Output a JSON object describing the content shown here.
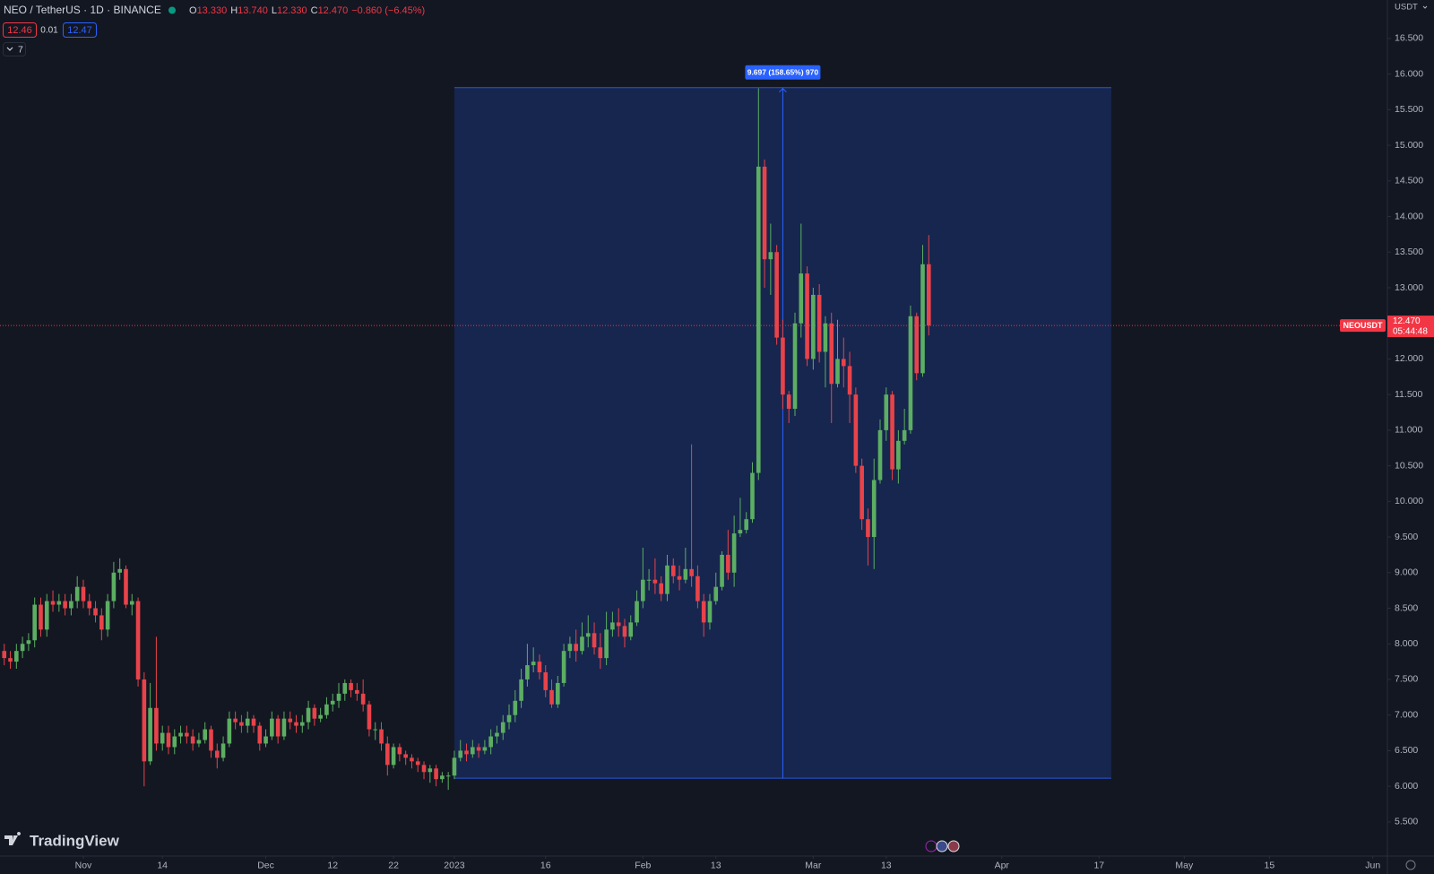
{
  "chart_data": {
    "type": "candlestick",
    "symbol": "NEO / TetherUS · 1D · BINANCE",
    "ohlc_labels": [
      "O",
      "H",
      "L",
      "C"
    ],
    "ohlc_values": [
      "13.330",
      "13.740",
      "12.330",
      "12.470"
    ],
    "change": "−0.860 (−6.45%)",
    "bid": "12.46",
    "spread": "0.01",
    "ask": "12.47",
    "indicators_count": "7",
    "currency": "USDT",
    "brand": "TradingView",
    "up_color": "#5cae62",
    "down_color": "#e8434a",
    "grid": false,
    "xlim": [
      -74.7,
      153.4
    ],
    "ylim": [
      5.02,
      17.04
    ],
    "yticks": [
      {
        "value": 5.5,
        "label": "5.500"
      },
      {
        "value": 6,
        "label": "6.000"
      },
      {
        "value": 6.5,
        "label": "6.500"
      },
      {
        "value": 7,
        "label": "7.000"
      },
      {
        "value": 7.5,
        "label": "7.500"
      },
      {
        "value": 8,
        "label": "8.000"
      },
      {
        "value": 8.5,
        "label": "8.500"
      },
      {
        "value": 9,
        "label": "9.000"
      },
      {
        "value": 9.5,
        "label": "9.500"
      },
      {
        "value": 10,
        "label": "10.000"
      },
      {
        "value": 10.5,
        "label": "10.500"
      },
      {
        "value": 11,
        "label": "11.000"
      },
      {
        "value": 11.5,
        "label": "11.500"
      },
      {
        "value": 12,
        "label": "12.000"
      },
      {
        "value": 12.5,
        "label": "12.500"
      },
      {
        "value": 13,
        "label": "13.000"
      },
      {
        "value": 13.5,
        "label": "13.500"
      },
      {
        "value": 14,
        "label": "14.000"
      },
      {
        "value": 14.5,
        "label": "14.500"
      },
      {
        "value": 15,
        "label": "15.000"
      },
      {
        "value": 15.5,
        "label": "15.500"
      },
      {
        "value": 16,
        "label": "16.000"
      },
      {
        "value": 16.5,
        "label": "16.500"
      }
    ],
    "xticks": [
      {
        "value": -61,
        "label": "Nov"
      },
      {
        "value": -48,
        "label": "14"
      },
      {
        "value": -31,
        "label": "Dec"
      },
      {
        "value": -20,
        "label": "12"
      },
      {
        "value": -10,
        "label": "22"
      },
      {
        "value": 0,
        "label": "2023"
      },
      {
        "value": 15,
        "label": "16"
      },
      {
        "value": 31,
        "label": "Feb"
      },
      {
        "value": 43,
        "label": "13"
      },
      {
        "value": 59,
        "label": "Mar"
      },
      {
        "value": 71,
        "label": "13"
      },
      {
        "value": 90,
        "label": "Apr"
      },
      {
        "value": 106,
        "label": "17"
      },
      {
        "value": 120,
        "label": "May"
      },
      {
        "value": 134,
        "label": "15"
      },
      {
        "value": 151,
        "label": "Jun"
      }
    ],
    "x": [
      -74,
      -73,
      -72,
      -71,
      -70,
      -69,
      -68,
      -67,
      -66,
      -65,
      -64,
      -63,
      -62,
      -61,
      -60,
      -59,
      -58,
      -57,
      -56,
      -55,
      -54,
      -53,
      -52,
      -51,
      -50,
      -49,
      -48,
      -47,
      -46,
      -45,
      -44,
      -43,
      -42,
      -41,
      -40,
      -39,
      -38,
      -37,
      -36,
      -35,
      -34,
      -33,
      -32,
      -31,
      -30,
      -29,
      -28,
      -27,
      -26,
      -25,
      -24,
      -23,
      -22,
      -21,
      -20,
      -19,
      -18,
      -17,
      -16,
      -15,
      -14,
      -13,
      -12,
      -11,
      -10,
      -9,
      -8,
      -7,
      -6,
      -5,
      -4,
      -3,
      -2,
      -1,
      0,
      1,
      2,
      3,
      4,
      5,
      6,
      7,
      8,
      9,
      10,
      11,
      12,
      13,
      14,
      15,
      16,
      17,
      18,
      19,
      20,
      21,
      22,
      23,
      24,
      25,
      26,
      27,
      28,
      29,
      30,
      31,
      32,
      33,
      34,
      35,
      36,
      37,
      38,
      39,
      40,
      41,
      42,
      43,
      44,
      45,
      46,
      47,
      48,
      49,
      50,
      51,
      52,
      53,
      54,
      55,
      56,
      57,
      58,
      59,
      60,
      61,
      62,
      63,
      64,
      65,
      66,
      67,
      68,
      69,
      70,
      71,
      72,
      73,
      74,
      75,
      76,
      77,
      78
    ],
    "open": [
      7.9,
      7.8,
      7.75,
      7.9,
      8.0,
      8.05,
      8.55,
      8.2,
      8.6,
      8.55,
      8.6,
      8.5,
      8.6,
      8.8,
      8.6,
      8.5,
      8.4,
      8.2,
      8.6,
      9.0,
      9.05,
      8.55,
      8.6,
      7.5,
      6.35,
      7.1,
      6.6,
      6.75,
      6.55,
      6.7,
      6.75,
      6.7,
      6.6,
      6.65,
      6.8,
      6.5,
      6.4,
      6.6,
      6.95,
      6.9,
      6.85,
      6.95,
      6.85,
      6.6,
      6.7,
      6.95,
      6.7,
      6.95,
      6.9,
      6.85,
      6.9,
      7.1,
      6.95,
      7.0,
      7.15,
      7.2,
      7.3,
      7.45,
      7.35,
      7.3,
      7.15,
      6.8,
      6.8,
      6.6,
      6.3,
      6.55,
      6.45,
      6.4,
      6.35,
      6.3,
      6.2,
      6.25,
      6.1,
      6.15,
      6.15,
      6.4,
      6.5,
      6.45,
      6.55,
      6.5,
      6.55,
      6.7,
      6.75,
      6.9,
      7.0,
      7.2,
      7.5,
      7.7,
      7.75,
      7.6,
      7.35,
      7.15,
      7.45,
      7.9,
      8.0,
      7.9,
      8.1,
      8.15,
      7.95,
      7.8,
      8.2,
      8.3,
      8.25,
      8.1,
      8.3,
      8.6,
      8.9,
      8.9,
      8.85,
      8.7,
      9.1,
      8.95,
      8.9,
      9.05,
      8.95,
      8.6,
      8.3,
      8.6,
      8.8,
      9.25,
      9.0,
      9.55,
      9.6,
      9.75,
      10.4,
      14.7,
      13.4,
      13.5,
      12.3,
      11.5,
      11.3,
      12.5,
      13.2,
      12.0,
      12.9,
      12.1,
      12.5,
      11.65,
      12.0,
      11.9,
      11.5,
      10.5,
      9.75,
      9.5,
      10.3,
      11.0,
      11.5,
      10.45,
      10.85,
      11.0,
      12.6,
      11.8,
      13.33
    ],
    "high": [
      8.0,
      7.9,
      8.0,
      8.1,
      8.15,
      8.65,
      8.65,
      8.7,
      8.75,
      8.7,
      8.7,
      8.7,
      8.95,
      8.9,
      8.7,
      8.6,
      8.5,
      8.7,
      9.15,
      9.2,
      9.1,
      8.7,
      8.65,
      7.6,
      7.45,
      8.1,
      6.85,
      6.85,
      6.8,
      6.85,
      6.85,
      6.8,
      6.75,
      6.9,
      6.85,
      6.6,
      6.7,
      7.05,
      7.05,
      7.0,
      7.05,
      7.0,
      6.9,
      6.8,
      7.05,
      7.0,
      7.05,
      7.05,
      7.0,
      7.0,
      7.2,
      7.15,
      7.1,
      7.25,
      7.3,
      7.45,
      7.5,
      7.5,
      7.45,
      7.5,
      7.2,
      6.9,
      6.9,
      6.7,
      6.6,
      6.6,
      6.5,
      6.45,
      6.4,
      6.35,
      6.3,
      6.3,
      6.2,
      6.2,
      6.5,
      6.65,
      6.6,
      6.65,
      6.6,
      6.65,
      6.8,
      6.85,
      7.0,
      7.15,
      7.35,
      7.65,
      8.0,
      7.95,
      7.85,
      7.7,
      7.5,
      7.55,
      8.0,
      8.1,
      8.2,
      8.3,
      8.4,
      8.3,
      8.15,
      8.45,
      8.45,
      8.5,
      8.35,
      8.4,
      8.75,
      9.35,
      9.05,
      9.2,
      8.95,
      9.25,
      9.2,
      9.1,
      9.35,
      10.8,
      9.1,
      8.7,
      8.7,
      9.0,
      9.3,
      9.6,
      9.8,
      10.05,
      9.85,
      10.55,
      15.8,
      14.8,
      13.9,
      13.6,
      12.55,
      11.55,
      12.65,
      13.9,
      13.3,
      13.0,
      13.05,
      12.6,
      12.65,
      12.55,
      12.3,
      12.1,
      11.6,
      10.6,
      9.9,
      10.6,
      11.15,
      11.6,
      11.55,
      11.0,
      11.3,
      12.75,
      12.65,
      13.6,
      13.74
    ],
    "low": [
      7.7,
      7.65,
      7.65,
      7.8,
      7.9,
      7.95,
      8.1,
      8.1,
      8.45,
      8.45,
      8.4,
      8.4,
      8.5,
      8.5,
      8.4,
      8.3,
      8.05,
      8.1,
      8.5,
      8.9,
      8.5,
      8.4,
      7.4,
      6.0,
      6.3,
      6.5,
      6.5,
      6.45,
      6.45,
      6.6,
      6.6,
      6.5,
      6.55,
      6.6,
      6.4,
      6.25,
      6.35,
      6.55,
      6.8,
      6.75,
      6.75,
      6.75,
      6.5,
      6.55,
      6.65,
      6.6,
      6.65,
      6.8,
      6.75,
      6.75,
      6.8,
      6.85,
      6.9,
      6.95,
      7.05,
      7.1,
      7.2,
      7.25,
      7.2,
      7.05,
      6.7,
      6.65,
      6.5,
      6.15,
      6.25,
      6.35,
      6.3,
      6.25,
      6.2,
      6.1,
      6.05,
      6.0,
      6.05,
      5.95,
      6.1,
      6.35,
      6.35,
      6.4,
      6.4,
      6.45,
      6.45,
      6.6,
      6.65,
      6.8,
      6.9,
      7.1,
      7.4,
      7.6,
      7.5,
      7.25,
      7.1,
      7.1,
      7.4,
      7.8,
      7.75,
      7.85,
      7.95,
      7.85,
      7.65,
      7.7,
      8.1,
      8.1,
      7.95,
      8.05,
      8.25,
      8.5,
      8.75,
      8.7,
      8.6,
      8.6,
      8.85,
      8.75,
      8.85,
      8.8,
      8.5,
      8.1,
      8.2,
      8.55,
      8.75,
      8.9,
      8.8,
      9.5,
      9.55,
      9.7,
      10.3,
      13.0,
      12.9,
      12.2,
      11.3,
      11.1,
      11.2,
      12.3,
      11.9,
      11.85,
      11.95,
      11.6,
      11.1,
      11.6,
      11.6,
      11.1,
      10.4,
      9.6,
      9.1,
      9.05,
      10.25,
      10.85,
      10.3,
      10.25,
      10.8,
      10.95,
      11.7,
      11.75,
      12.33
    ],
    "close": [
      7.8,
      7.75,
      7.9,
      8.0,
      8.05,
      8.55,
      8.2,
      8.6,
      8.55,
      8.6,
      8.5,
      8.6,
      8.8,
      8.6,
      8.5,
      8.4,
      8.2,
      8.6,
      9.0,
      9.05,
      8.55,
      8.6,
      7.5,
      6.35,
      7.1,
      6.6,
      6.75,
      6.55,
      6.7,
      6.75,
      6.7,
      6.6,
      6.65,
      6.8,
      6.5,
      6.4,
      6.6,
      6.95,
      6.9,
      6.85,
      6.95,
      6.85,
      6.6,
      6.7,
      6.95,
      6.7,
      6.95,
      6.9,
      6.85,
      6.9,
      7.1,
      6.95,
      7.0,
      7.15,
      7.2,
      7.3,
      7.45,
      7.35,
      7.3,
      7.15,
      6.8,
      6.8,
      6.6,
      6.3,
      6.55,
      6.45,
      6.4,
      6.35,
      6.3,
      6.2,
      6.25,
      6.1,
      6.15,
      6.15,
      6.4,
      6.5,
      6.45,
      6.55,
      6.5,
      6.55,
      6.7,
      6.75,
      6.9,
      7.0,
      7.2,
      7.5,
      7.7,
      7.75,
      7.6,
      7.35,
      7.15,
      7.45,
      7.9,
      8.0,
      7.9,
      8.1,
      8.15,
      7.95,
      7.8,
      8.2,
      8.3,
      8.25,
      8.1,
      8.3,
      8.6,
      8.9,
      8.9,
      8.85,
      8.7,
      9.1,
      8.95,
      8.9,
      9.05,
      8.95,
      8.6,
      8.3,
      8.6,
      8.8,
      9.25,
      9.0,
      9.55,
      9.6,
      9.75,
      10.4,
      14.7,
      13.4,
      13.5,
      12.3,
      11.5,
      11.3,
      12.5,
      13.2,
      12.0,
      12.9,
      12.1,
      12.5,
      11.65,
      12.0,
      11.9,
      11.5,
      10.5,
      9.75,
      9.5,
      10.3,
      11.0,
      11.5,
      10.45,
      10.85,
      11.0,
      12.6,
      11.8,
      13.33,
      12.47
    ],
    "measure": {
      "label": "9.697 (158.65%) 970",
      "low": 6.113,
      "high": 15.81,
      "x_start": 0,
      "x_end": 108,
      "color": "#2962ff"
    },
    "last_price": {
      "value": 12.47,
      "label": "12.470",
      "name": "NEOUSDT",
      "countdown": "05:44:48",
      "color": "#f23645"
    }
  }
}
